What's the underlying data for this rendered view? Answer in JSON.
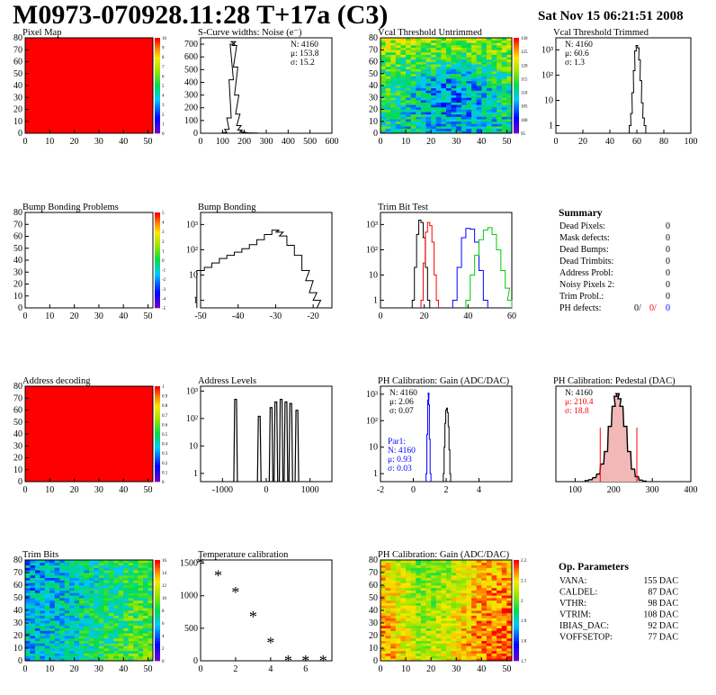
{
  "header": {
    "title": "M0973-070928.11:28 T+17a (C3)",
    "date": "Sat Nov 15 06:21:51 2008"
  },
  "colors": {
    "red": "#ff0000",
    "blue": "#0000ff",
    "green": "#00cc00",
    "hatch_red": "#cc0000"
  },
  "summary": {
    "title": "Summary",
    "rows": [
      {
        "label": "Dead Pixels:",
        "value": "0"
      },
      {
        "label": "Mask defects:",
        "value": "0"
      },
      {
        "label": "Dead Bumps:",
        "value": "0"
      },
      {
        "label": "Dead Trimbits:",
        "value": "0"
      },
      {
        "label": "Address Probl:",
        "value": "0"
      },
      {
        "label": "Noisy Pixels 2:",
        "value": "0"
      },
      {
        "label": "Trim Probl.:",
        "value": "0"
      }
    ],
    "ph_defects": {
      "label": "PH defects:",
      "v1": "0/",
      "v2": "0/",
      "v3": "0"
    }
  },
  "op_params": {
    "title": "Op. Parameters",
    "rows": [
      {
        "label": "VANA:",
        "value": "155 DAC"
      },
      {
        "label": "CALDEL:",
        "value": "87 DAC"
      },
      {
        "label": "VTHR:",
        "value": "98 DAC"
      },
      {
        "label": "VTRIM:",
        "value": "108 DAC"
      },
      {
        "label": "IBIAS_DAC:",
        "value": "92 DAC"
      },
      {
        "label": "VOFFSETOP:",
        "value": "77 DAC"
      }
    ]
  },
  "chart_data": [
    {
      "id": "pixel-map",
      "type": "heatmap",
      "title": "Pixel Map",
      "xlim": [
        0,
        52
      ],
      "ylim": [
        0,
        80
      ],
      "xticks": [
        0,
        10,
        20,
        30,
        40,
        50
      ],
      "yticks": [
        0,
        10,
        20,
        30,
        40,
        50,
        60,
        70,
        80
      ],
      "pattern": "uniform",
      "value": 10,
      "zticks": [
        "0",
        "1",
        "2",
        "3",
        "4",
        "5",
        "6",
        "7",
        "8",
        "9",
        "10"
      ]
    },
    {
      "id": "scurve-noise",
      "type": "line",
      "title": "S-Curve widths: Noise (e⁻)",
      "xlim": [
        0,
        600
      ],
      "ylim": [
        0,
        750
      ],
      "xticks": [
        0,
        100,
        200,
        300,
        400,
        500,
        600
      ],
      "yticks": [
        0,
        100,
        200,
        300,
        400,
        500,
        600,
        700
      ],
      "stats": [
        "N: 4160",
        "μ: 153.8",
        "σ: 15.2"
      ],
      "x": [
        90,
        110,
        120,
        130,
        140,
        145,
        150,
        155,
        160,
        165,
        170,
        175,
        180,
        190,
        200,
        220,
        250,
        270
      ],
      "values": [
        0,
        5,
        30,
        120,
        420,
        700,
        720,
        690,
        520,
        300,
        150,
        60,
        25,
        10,
        6,
        3,
        2,
        0
      ]
    },
    {
      "id": "vcal-untrimmed",
      "type": "heatmap",
      "title": "Vcal Threshold Untrimmed",
      "xlim": [
        0,
        52
      ],
      "ylim": [
        0,
        80
      ],
      "xticks": [
        0,
        10,
        20,
        30,
        40,
        50
      ],
      "yticks": [
        0,
        10,
        20,
        30,
        40,
        50,
        60,
        70,
        80
      ],
      "pattern": "untrimmed",
      "zticks": [
        "95",
        "100",
        "105",
        "110",
        "115",
        "120",
        "125",
        "130"
      ]
    },
    {
      "id": "vcal-trimmed",
      "type": "line",
      "title": "Vcal Threshold Trimmed",
      "log": true,
      "xlim": [
        0,
        100
      ],
      "ylim": [
        0.5,
        3000
      ],
      "xticks": [
        0,
        20,
        40,
        60,
        80,
        100
      ],
      "yticks": [
        "1",
        "10",
        "10²",
        "10³"
      ],
      "stats": [
        "N: 4160",
        "μ: 60.6",
        "σ:   1.3"
      ],
      "x": [
        55,
        56,
        57,
        58,
        59,
        60,
        61,
        62,
        63,
        64,
        65,
        66
      ],
      "values": [
        1,
        3,
        20,
        150,
        900,
        1500,
        1200,
        400,
        60,
        8,
        2,
        1
      ]
    },
    {
      "id": "bump-bonding-problems",
      "type": "heatmap",
      "title": "Bump Bonding Problems",
      "xlim": [
        0,
        52
      ],
      "ylim": [
        0,
        80
      ],
      "xticks": [
        0,
        10,
        20,
        30,
        40,
        50
      ],
      "yticks": [
        0,
        10,
        20,
        30,
        40,
        50,
        60,
        70,
        80
      ],
      "pattern": "empty",
      "zticks": [
        "-5",
        "-4",
        "-3",
        "-2",
        "-1",
        "0",
        "1",
        "2",
        "3",
        "4",
        "5"
      ]
    },
    {
      "id": "bump-bonding",
      "type": "line",
      "title": "Bump Bonding",
      "log": true,
      "xlim": [
        -50,
        -15
      ],
      "ylim": [
        0.5,
        3000
      ],
      "xticks": [
        -50,
        -40,
        -30,
        -20
      ],
      "yticks": [
        "1",
        "10",
        "10²",
        "10³"
      ],
      "x": [
        -50,
        -48,
        -46,
        -44,
        -42,
        -40,
        -38,
        -36,
        -34,
        -32,
        -30,
        -29,
        -28,
        -26,
        -24,
        -22,
        -21,
        -20,
        -19,
        -18
      ],
      "values": [
        15,
        20,
        30,
        45,
        60,
        80,
        110,
        160,
        250,
        400,
        600,
        500,
        350,
        150,
        60,
        15,
        6,
        2,
        1,
        0.5
      ]
    },
    {
      "id": "trim-bit-test",
      "type": "line",
      "title": "Trim Bit Test",
      "log": true,
      "xlim": [
        0,
        60
      ],
      "ylim": [
        0.5,
        3000
      ],
      "xticks": [
        0,
        20,
        40,
        60
      ],
      "yticks": [
        "1",
        "10",
        "10²",
        "10³"
      ],
      "series": [
        {
          "color": "#000000",
          "x": [
            15,
            16,
            17,
            18,
            19,
            20,
            21,
            22
          ],
          "values": [
            1,
            20,
            400,
            1500,
            1200,
            300,
            20,
            1
          ]
        },
        {
          "color": "#ff0000",
          "x": [
            19,
            20,
            21,
            22,
            23,
            24,
            25,
            26
          ],
          "values": [
            1,
            30,
            500,
            1200,
            900,
            200,
            10,
            1
          ]
        },
        {
          "color": "#0000ff",
          "x": [
            34,
            36,
            38,
            40,
            42,
            44,
            46,
            48
          ],
          "values": [
            1,
            20,
            300,
            700,
            650,
            200,
            15,
            1
          ]
        },
        {
          "color": "#00cc00",
          "x": [
            40,
            42,
            44,
            46,
            48,
            50,
            52,
            54,
            56,
            58,
            59
          ],
          "values": [
            1,
            10,
            60,
            250,
            600,
            750,
            400,
            100,
            15,
            3,
            1
          ]
        }
      ]
    },
    {
      "id": "address-decoding",
      "type": "heatmap",
      "title": "Address decoding",
      "xlim": [
        0,
        52
      ],
      "ylim": [
        0,
        80
      ],
      "xticks": [
        0,
        10,
        20,
        30,
        40,
        50
      ],
      "yticks": [
        0,
        10,
        20,
        30,
        40,
        50,
        60,
        70,
        80
      ],
      "pattern": "uniform",
      "value": 1,
      "zticks": [
        "0",
        "0.1",
        "0.2",
        "0.3",
        "0.4",
        "0.5",
        "0.6",
        "0.7",
        "0.8",
        "0.9",
        "1"
      ]
    },
    {
      "id": "address-levels",
      "type": "line",
      "title": "Address Levels",
      "log": true,
      "xlim": [
        -1500,
        1500
      ],
      "ylim": [
        0.5,
        1500
      ],
      "xticks": [
        -1000,
        0,
        1000
      ],
      "yticks": [
        "1",
        "10",
        "10²",
        "10³"
      ],
      "peaks": [
        -700,
        -160,
        110,
        220,
        340,
        450,
        560,
        700
      ],
      "values": [
        500,
        120,
        250,
        400,
        500,
        400,
        350,
        200
      ]
    },
    {
      "id": "ph-gain",
      "type": "line",
      "title": "PH Calibration: Gain (ADC/DAC)",
      "log": true,
      "xlim": [
        -2,
        6
      ],
      "ylim": [
        0.5,
        2000
      ],
      "xticks": [
        -2,
        0,
        2,
        4
      ],
      "yticks": [
        "1",
        "10",
        "10²",
        "10³"
      ],
      "stats": [
        "N: 4160",
        "μ: 2.06",
        "σ: 0.07"
      ],
      "stats2": [
        "Par1:",
        "N: 4160",
        "μ: 0.93",
        "σ: 0.03"
      ],
      "series": [
        {
          "color": "#000000",
          "x": [
            1.85,
            1.9,
            1.95,
            2.0,
            2.05,
            2.1,
            2.15,
            2.2,
            2.25
          ],
          "values": [
            1,
            10,
            80,
            250,
            300,
            200,
            60,
            8,
            1
          ]
        },
        {
          "color": "#0000ff",
          "x": [
            0.8,
            0.85,
            0.9,
            0.93,
            0.96,
            1.0,
            1.05
          ],
          "values": [
            1,
            30,
            600,
            1100,
            400,
            20,
            1
          ]
        }
      ]
    },
    {
      "id": "ph-pedestal",
      "type": "line",
      "title": "PH Calibration: Pedestal (DAC)",
      "xlim": [
        50,
        400
      ],
      "ylim": [
        0,
        190
      ],
      "xticks": [
        100,
        200,
        300,
        400
      ],
      "stats": [
        "N: 4160",
        "μ: 210.4",
        "σ: 18.8"
      ],
      "x": [
        130,
        140,
        150,
        160,
        170,
        180,
        190,
        200,
        205,
        210,
        215,
        220,
        230,
        240,
        250,
        260,
        270,
        280
      ],
      "values": [
        2,
        4,
        8,
        15,
        35,
        60,
        110,
        150,
        170,
        175,
        165,
        150,
        110,
        60,
        25,
        10,
        3,
        1
      ],
      "cut_lines": [
        165,
        260
      ]
    },
    {
      "id": "trim-bits",
      "type": "heatmap",
      "title": "Trim Bits",
      "xlim": [
        0,
        52
      ],
      "ylim": [
        0,
        80
      ],
      "xticks": [
        0,
        10,
        20,
        30,
        40,
        50
      ],
      "yticks": [
        0,
        10,
        20,
        30,
        40,
        50,
        60,
        70,
        80
      ],
      "pattern": "trimbits",
      "zticks": [
        "0",
        "2",
        "4",
        "6",
        "8",
        "10",
        "12",
        "14",
        "16"
      ]
    },
    {
      "id": "temperature-calibration",
      "type": "scatter",
      "title": "Temperature calibration",
      "xlim": [
        0,
        7.5
      ],
      "ylim": [
        0,
        1550
      ],
      "xticks": [
        0,
        2,
        4,
        6
      ],
      "yticks": [
        0,
        500,
        1000,
        1500
      ],
      "x": [
        0,
        1,
        2,
        3,
        4,
        5,
        6,
        7
      ],
      "values": [
        1500,
        1310,
        1050,
        680,
        280,
        0,
        0,
        0
      ]
    },
    {
      "id": "ph-gain-map",
      "type": "heatmap",
      "title": "PH Calibration: Gain (ADC/DAC)",
      "xlim": [
        0,
        52
      ],
      "ylim": [
        0,
        80
      ],
      "xticks": [
        0,
        10,
        20,
        30,
        40,
        50
      ],
      "yticks": [
        0,
        10,
        20,
        30,
        40,
        50,
        60,
        70,
        80
      ],
      "pattern": "gainmap",
      "zticks": [
        "1.7",
        "1.8",
        "1.9",
        "2",
        "2.1",
        "2.2"
      ]
    }
  ]
}
